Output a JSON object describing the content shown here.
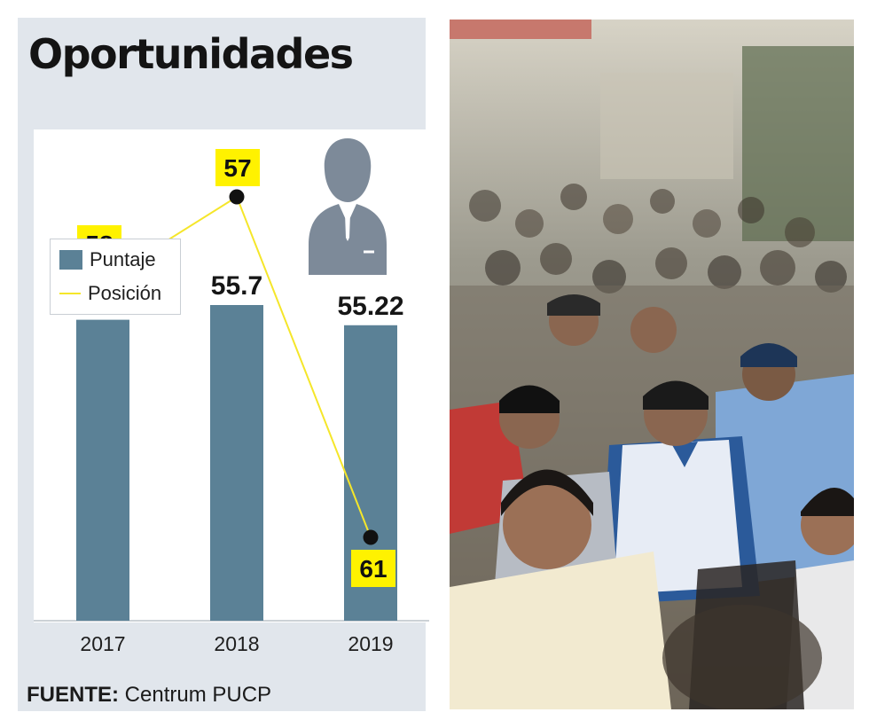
{
  "title": "Oportunidades",
  "legend": {
    "items": [
      {
        "label": "Puntaje",
        "color": "#5b8196",
        "kind": "bar"
      },
      {
        "label": "Posición",
        "color": "#f5e62a",
        "kind": "line"
      }
    ]
  },
  "source": {
    "prefix": "FUENTE:",
    "text": "Centrum PUCP"
  },
  "photo": {
    "description_icon": "crowd-photo",
    "accent_colors": [
      "#2b5a9a",
      "#f2ead0",
      "#c13a36"
    ]
  },
  "person_icon": {
    "name": "businessman-icon",
    "color": "#7d8a99"
  },
  "chart_data": [
    {
      "type": "bar",
      "categories": [
        "2017",
        "2018",
        "2019"
      ],
      "series": [
        {
          "name": "Puntaje",
          "values": [
            55.35,
            55.7,
            55.22
          ],
          "labels": [
            "55.35",
            "55.7",
            "55.22"
          ],
          "color": "#5b8196"
        }
      ]
    },
    {
      "type": "line",
      "categories": [
        "2017",
        "2018",
        "2019"
      ],
      "series": [
        {
          "name": "Posición",
          "values": [
            58,
            57,
            61
          ],
          "labels": [
            "58",
            "57",
            "61"
          ],
          "color": "#f5e62a",
          "label_bg": "#fff200"
        }
      ],
      "y_inverted": true
    }
  ]
}
